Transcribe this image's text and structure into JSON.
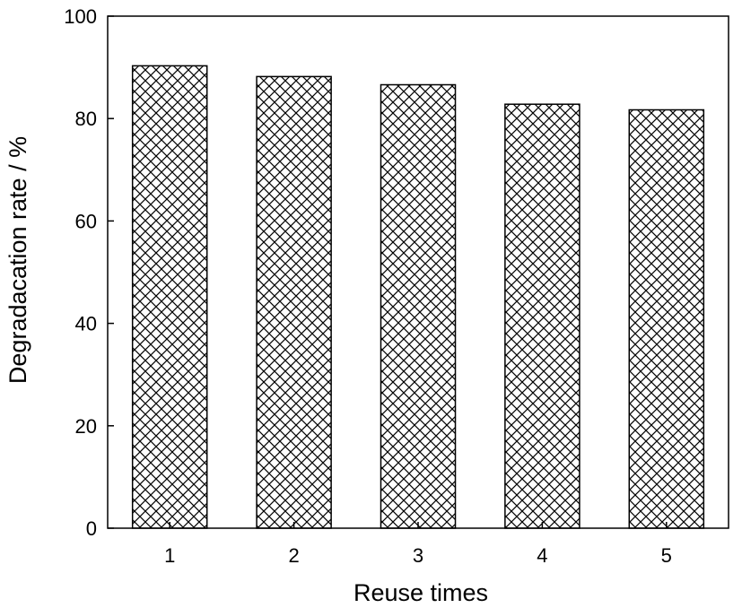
{
  "chart_data": {
    "type": "bar",
    "categories": [
      "1",
      "2",
      "3",
      "4",
      "5"
    ],
    "values": [
      90.3,
      88.2,
      86.6,
      82.8,
      81.7
    ],
    "xlabel": "Reuse times",
    "ylabel": "Degradacation rate / %",
    "ylim": [
      0,
      100
    ],
    "yticks": [
      "0",
      "20",
      "40",
      "60",
      "80",
      "100"
    ],
    "bar_fill": "cross-hatch",
    "grid": false,
    "colors": {
      "bar_edge": "#000000",
      "hatch": "#000000",
      "background": "#ffffff"
    }
  }
}
